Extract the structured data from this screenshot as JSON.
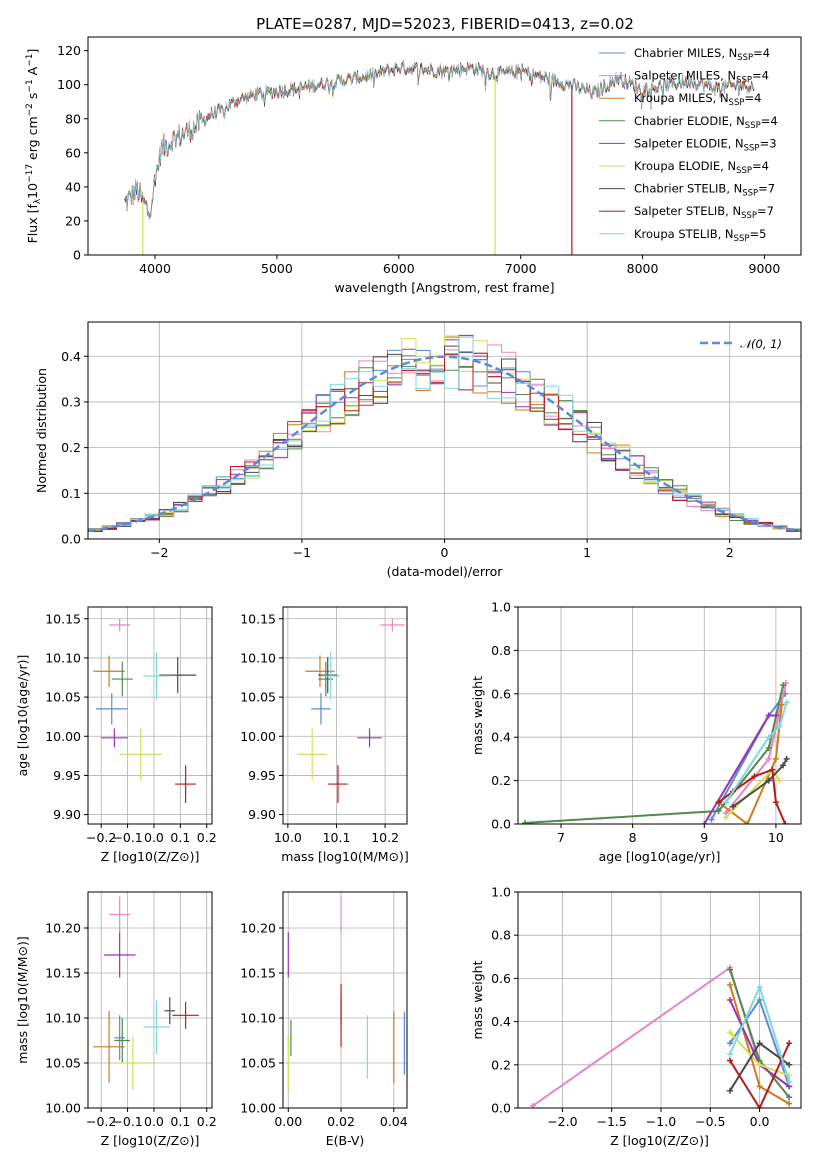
{
  "figure": {
    "title": "PLATE=0287, MJD=52023, FIBERID=0413, z=0.02"
  },
  "colors": {
    "Chabrier MILES": "#5b8bd4",
    "Salpeter MILES": "#e985c2",
    "Kroupa MILES": "#d17a1c",
    "Chabrier ELODIE": "#4f8a4f",
    "Salpeter ELODIE": "#9a32b5",
    "Kroupa ELODIE": "#d2e056",
    "Chabrier STELIB": "#4a4a4a",
    "Salpeter STELIB": "#b51c1c",
    "Kroupa STELIB": "#7fd7e0",
    "grid": "#b0b0b0",
    "normal_curve": "#5b8bd4"
  },
  "chart_data": [
    {
      "id": "spectrum",
      "type": "line",
      "title": "PLATE=0287, MJD=52023, FIBERID=0413, z=0.02",
      "xlabel": "wavelength [Angstrom, rest frame]",
      "ylabel": "Flux [f_λ10^-17 erg cm^-2 s^-1 A^-1]",
      "xlim": [
        3450,
        9300
      ],
      "ylim": [
        0,
        128
      ],
      "xticks": [
        4000,
        5000,
        6000,
        7000,
        8000,
        9000
      ],
      "yticks": [
        0,
        20,
        40,
        60,
        80,
        100,
        120
      ],
      "grid": false,
      "legend_position": "top-right",
      "series": [
        {
          "name": "Chabrier MILES, N_SSP=4",
          "nssp": "4"
        },
        {
          "name": "Salpeter MILES, N_SSP=4",
          "nssp": "4"
        },
        {
          "name": "Kroupa MILES, N_SSP=4",
          "nssp": "4"
        },
        {
          "name": "Chabrier ELODIE, N_SSP=4",
          "nssp": "4"
        },
        {
          "name": "Salpeter ELODIE, N_SSP=3",
          "nssp": "3"
        },
        {
          "name": "Kroupa ELODIE, N_SSP=4",
          "nssp": "4"
        },
        {
          "name": "Chabrier STELIB, N_SSP=7",
          "nssp": "7"
        },
        {
          "name": "Salpeter STELIB, N_SSP=7",
          "nssp": "7"
        },
        {
          "name": "Kroupa STELIB, N_SSP=5",
          "nssp": "5"
        }
      ],
      "continuum": {
        "x": [
          3750,
          3850,
          3950,
          4050,
          4150,
          4250,
          4350,
          4450,
          4550,
          4650,
          4800,
          5000,
          5200,
          5400,
          5600,
          5800,
          6000,
          6200,
          6400,
          6600,
          6800,
          7000,
          7200,
          7400,
          7600,
          7800,
          8000,
          8200,
          8400,
          8600,
          8800,
          8900
        ],
        "y": [
          30,
          38,
          25,
          62,
          68,
          72,
          76,
          82,
          85,
          90,
          94,
          96,
          98,
          101,
          103,
          106,
          110,
          109,
          108,
          110,
          106,
          108,
          104,
          100,
          95,
          104,
          97,
          100,
          102,
          98,
          100,
          99
        ]
      },
      "drops": [
        {
          "series": "Kroupa ELODIE, N_SSP=4",
          "x": 3900
        },
        {
          "series": "Kroupa ELODIE, N_SSP=4",
          "x": 6790
        },
        {
          "series": "Salpeter STELIB, N_SSP=7",
          "x": 7420
        }
      ]
    },
    {
      "id": "residual-histogram",
      "type": "histogram",
      "xlabel": "(data-model)/error",
      "ylabel": "Normed distribution",
      "xlim": [
        -2.5,
        2.5
      ],
      "ylim": [
        0,
        0.475
      ],
      "xticks": [
        -2,
        -1,
        0,
        1,
        2
      ],
      "yticks": [
        0.0,
        0.1,
        0.2,
        0.3,
        0.4
      ],
      "grid": true,
      "legend_position": "top-right",
      "legend_label": "𝒩(0, 1)",
      "bin_width": 0.1,
      "reference_curve": {
        "name": "𝒩(0, 1)",
        "mean": 0,
        "sigma": 1
      }
    },
    {
      "id": "age-vs-Z",
      "type": "errorbar",
      "xlabel": "Z [log10(Z/Z⊙)]",
      "ylabel": "age [log10(age/yr)]",
      "xlim": [
        -0.25,
        0.22
      ],
      "ylim": [
        9.888,
        10.165
      ],
      "xticks": [
        -0.2,
        -0.1,
        0.0,
        0.1,
        0.2
      ],
      "yticks": [
        9.9,
        9.95,
        10.0,
        10.05,
        10.1,
        10.15
      ],
      "grid": true,
      "points": [
        {
          "series": "Chabrier MILES",
          "x": -0.16,
          "xerr": 0.06,
          "y": 10.035,
          "yerr": 0.02
        },
        {
          "series": "Salpeter MILES",
          "x": -0.13,
          "xerr": 0.04,
          "y": 10.142,
          "yerr": 0.008
        },
        {
          "series": "Kroupa MILES",
          "x": -0.17,
          "xerr": 0.06,
          "y": 10.083,
          "yerr": 0.02
        },
        {
          "series": "Chabrier ELODIE",
          "x": -0.12,
          "xerr": 0.04,
          "y": 10.073,
          "yerr": 0.022
        },
        {
          "series": "Salpeter ELODIE",
          "x": -0.15,
          "xerr": 0.05,
          "y": 9.998,
          "yerr": 0.012
        },
        {
          "series": "Kroupa ELODIE",
          "x": -0.05,
          "xerr": 0.08,
          "y": 9.977,
          "yerr": 0.033
        },
        {
          "series": "Chabrier STELIB",
          "x": 0.09,
          "xerr": 0.07,
          "y": 10.078,
          "yerr": 0.023
        },
        {
          "series": "Salpeter STELIB",
          "x": 0.12,
          "xerr": 0.04,
          "y": 9.939,
          "yerr": 0.024
        },
        {
          "series": "Kroupa STELIB",
          "x": 0.01,
          "xerr": 0.05,
          "y": 10.077,
          "yerr": 0.03
        }
      ]
    },
    {
      "id": "age-vs-mass",
      "type": "errorbar",
      "xlabel": "mass [log10(M/M⊙)]",
      "ylabel": "",
      "xlim": [
        9.99,
        10.245
      ],
      "ylim": [
        9.888,
        10.165
      ],
      "xticks": [
        10.0,
        10.1,
        10.2
      ],
      "yticks": [
        9.9,
        9.95,
        10.0,
        10.05,
        10.1,
        10.15
      ],
      "grid": true,
      "points": [
        {
          "series": "Chabrier MILES",
          "x": 10.068,
          "xerr": 0.02,
          "y": 10.035,
          "yerr": 0.02
        },
        {
          "series": "Salpeter MILES",
          "x": 10.215,
          "xerr": 0.025,
          "y": 10.142,
          "yerr": 0.008
        },
        {
          "series": "Kroupa MILES",
          "x": 10.066,
          "xerr": 0.03,
          "y": 10.083,
          "yerr": 0.02
        },
        {
          "series": "Chabrier ELODIE",
          "x": 10.078,
          "xerr": 0.015,
          "y": 10.073,
          "yerr": 0.022
        },
        {
          "series": "Salpeter ELODIE",
          "x": 10.168,
          "xerr": 0.025,
          "y": 9.998,
          "yerr": 0.012
        },
        {
          "series": "Kroupa ELODIE",
          "x": 10.05,
          "xerr": 0.03,
          "y": 9.977,
          "yerr": 0.033
        },
        {
          "series": "Chabrier STELIB",
          "x": 10.082,
          "xerr": 0.02,
          "y": 10.078,
          "yerr": 0.023
        },
        {
          "series": "Salpeter STELIB",
          "x": 10.103,
          "xerr": 0.02,
          "y": 9.939,
          "yerr": 0.024
        },
        {
          "series": "Kroupa STELIB",
          "x": 10.088,
          "xerr": 0.02,
          "y": 10.077,
          "yerr": 0.03
        }
      ]
    },
    {
      "id": "mass-weight-vs-age",
      "type": "line",
      "xlabel": "age [log10(age/yr)]",
      "ylabel": "mass weight",
      "xlim": [
        6.4,
        10.35
      ],
      "ylim": [
        0,
        1.0
      ],
      "xticks": [
        7,
        8,
        9,
        10
      ],
      "yticks": [
        0.0,
        0.2,
        0.4,
        0.6,
        0.8,
        1.0
      ],
      "grid": true,
      "series": [
        {
          "name": "Chabrier MILES",
          "x": [
            9.1,
            9.9,
            10.13
          ],
          "y": [
            0.02,
            0.5,
            0.6
          ]
        },
        {
          "name": "Salpeter MILES",
          "x": [
            9.3,
            9.9,
            10.14
          ],
          "y": [
            0.05,
            0.3,
            0.65
          ]
        },
        {
          "name": "Kroupa MILES",
          "x": [
            9.2,
            9.6,
            10.0,
            10.08
          ],
          "y": [
            0.1,
            0.0,
            0.3,
            0.55
          ]
        },
        {
          "name": "Chabrier ELODIE",
          "x": [
            6.5,
            9.2,
            9.9,
            10.1
          ],
          "y": [
            0.005,
            0.06,
            0.35,
            0.64
          ]
        },
        {
          "name": "Salpeter ELODIE",
          "x": [
            9.0,
            9.9,
            10.0
          ],
          "y": [
            0.0,
            0.5,
            0.5
          ]
        },
        {
          "name": "Kroupa ELODIE",
          "x": [
            9.3,
            9.95,
            10.05
          ],
          "y": [
            0.03,
            0.25,
            0.2
          ]
        },
        {
          "name": "Chabrier STELIB",
          "x": [
            9.4,
            9.9,
            10.1,
            10.15
          ],
          "y": [
            0.08,
            0.2,
            0.27,
            0.3
          ]
        },
        {
          "name": "Salpeter STELIB",
          "x": [
            9.2,
            9.4,
            9.7,
            9.95,
            10.0,
            10.13
          ],
          "y": [
            0.1,
            0.15,
            0.22,
            0.25,
            0.1,
            0.0
          ]
        },
        {
          "name": "Kroupa STELIB",
          "x": [
            9.3,
            9.9,
            10.05,
            10.15
          ],
          "y": [
            0.1,
            0.4,
            0.45,
            0.56
          ]
        }
      ]
    },
    {
      "id": "mass-vs-Z",
      "type": "errorbar",
      "xlabel": "Z [log10(Z/Z⊙)]",
      "ylabel": "mass [log10(M/M⊙)]",
      "xlim": [
        -0.25,
        0.22
      ],
      "ylim": [
        10.0,
        10.24
      ],
      "xticks": [
        -0.2,
        -0.1,
        0.0,
        0.1,
        0.2
      ],
      "yticks": [
        10.0,
        10.05,
        10.1,
        10.15,
        10.2
      ],
      "grid": true,
      "points": [
        {
          "series": "Chabrier MILES",
          "x": -0.13,
          "xerr": 0.02,
          "y": 10.078,
          "yerr": 0.025
        },
        {
          "series": "Salpeter MILES",
          "x": -0.13,
          "xerr": 0.04,
          "y": 10.215,
          "yerr": 0.02
        },
        {
          "series": "Kroupa MILES",
          "x": -0.17,
          "xerr": 0.06,
          "y": 10.068,
          "yerr": 0.04
        },
        {
          "series": "Chabrier ELODIE",
          "x": -0.12,
          "xerr": 0.03,
          "y": 10.075,
          "yerr": 0.025
        },
        {
          "series": "Salpeter ELODIE",
          "x": -0.13,
          "xerr": 0.06,
          "y": 10.17,
          "yerr": 0.025
        },
        {
          "series": "Kroupa ELODIE",
          "x": -0.08,
          "xerr": 0.07,
          "y": 10.05,
          "yerr": 0.03
        },
        {
          "series": "Chabrier STELIB",
          "x": 0.06,
          "xerr": 0.02,
          "y": 10.108,
          "yerr": 0.015
        },
        {
          "series": "Salpeter STELIB",
          "x": 0.12,
          "xerr": 0.05,
          "y": 10.103,
          "yerr": 0.015
        },
        {
          "series": "Kroupa STELIB",
          "x": 0.01,
          "xerr": 0.05,
          "y": 10.09,
          "yerr": 0.03
        }
      ]
    },
    {
      "id": "mass-vs-EBV",
      "type": "errorbar",
      "xlabel": "E(B-V)",
      "ylabel": "",
      "xlim": [
        -0.002,
        0.045
      ],
      "ylim": [
        10.0,
        10.24
      ],
      "xticks": [
        0.0,
        0.02,
        0.04
      ],
      "yticks": [
        10.0,
        10.05,
        10.1,
        10.15,
        10.2
      ],
      "grid": true,
      "points": [
        {
          "series": "Chabrier MILES",
          "x": 0.044,
          "xerr": 0,
          "y": 10.072,
          "yerr": 0.035
        },
        {
          "series": "Salpeter MILES",
          "x": 0.02,
          "xerr": 0,
          "y": 10.215,
          "yerr": 0.02
        },
        {
          "series": "Kroupa MILES",
          "x": 0.04,
          "xerr": 0,
          "y": 10.068,
          "yerr": 0.04
        },
        {
          "series": "Chabrier ELODIE",
          "x": 0.001,
          "xerr": 0,
          "y": 10.078,
          "yerr": 0.02
        },
        {
          "series": "Salpeter ELODIE",
          "x": 0.0,
          "xerr": 0,
          "y": 10.17,
          "yerr": 0.025
        },
        {
          "series": "Kroupa ELODIE",
          "x": 0.0,
          "xerr": 0,
          "y": 10.05,
          "yerr": 0.03
        },
        {
          "series": "Chabrier STELIB",
          "x": 0.02,
          "xerr": 0,
          "y": 10.108,
          "yerr": 0.015
        },
        {
          "series": "Salpeter STELIB",
          "x": 0.02,
          "xerr": 0,
          "y": 10.103,
          "yerr": 0.035
        },
        {
          "series": "Kroupa STELIB",
          "x": 0.03,
          "xerr": 0,
          "y": 10.068,
          "yerr": 0.035
        }
      ]
    },
    {
      "id": "mass-weight-vs-Z",
      "type": "line",
      "xlabel": "Z [log10(Z/Z⊙)]",
      "ylabel": "mass weight",
      "xlim": [
        -2.45,
        0.42
      ],
      "ylim": [
        0,
        1.0
      ],
      "xticks": [
        -2.0,
        -1.5,
        -1.0,
        -0.5,
        0.0
      ],
      "yticks": [
        0.0,
        0.2,
        0.4,
        0.6,
        0.8,
        1.0
      ],
      "grid": true,
      "series": [
        {
          "name": "Salpeter MILES",
          "x": [
            -2.3,
            -0.3,
            0.0,
            0.3
          ],
          "y": [
            0.01,
            0.65,
            0.2,
            0.1
          ]
        },
        {
          "name": "Chabrier MILES",
          "x": [
            -0.3,
            0.0,
            0.3
          ],
          "y": [
            0.3,
            0.5,
            0.1
          ]
        },
        {
          "name": "Kroupa MILES",
          "x": [
            -0.3,
            0.0,
            0.3
          ],
          "y": [
            0.57,
            0.1,
            0.02
          ]
        },
        {
          "name": "Chabrier ELODIE",
          "x": [
            -0.3,
            0.0,
            0.3
          ],
          "y": [
            0.64,
            0.22,
            0.05
          ]
        },
        {
          "name": "Salpeter ELODIE",
          "x": [
            -0.3,
            0.0,
            0.3
          ],
          "y": [
            0.5,
            0.2,
            0.1
          ]
        },
        {
          "name": "Kroupa ELODIE",
          "x": [
            -0.3,
            0.0,
            0.3
          ],
          "y": [
            0.35,
            0.2,
            0.15
          ]
        },
        {
          "name": "Chabrier STELIB",
          "x": [
            -0.3,
            0.0,
            0.3
          ],
          "y": [
            0.08,
            0.3,
            0.2
          ]
        },
        {
          "name": "Salpeter STELIB",
          "x": [
            -0.3,
            0.0,
            0.3
          ],
          "y": [
            0.22,
            0.0,
            0.3
          ]
        },
        {
          "name": "Kroupa STELIB",
          "x": [
            -0.3,
            0.0,
            0.3
          ],
          "y": [
            0.25,
            0.56,
            0.12
          ]
        }
      ]
    }
  ]
}
